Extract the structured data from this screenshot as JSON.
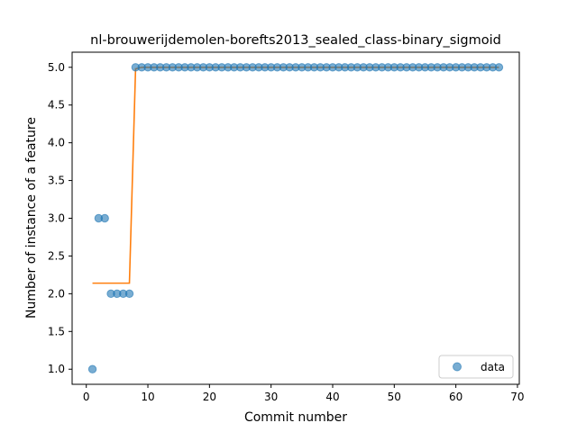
{
  "chart_data": {
    "type": "scatter",
    "title": "nl-brouwerijdemolen-borefts2013_sealed_class-binary_sigmoid",
    "xlabel": "Commit number",
    "ylabel": "Number of instance of a feature",
    "xlim": [
      -2.3,
      70.3
    ],
    "ylim": [
      0.8,
      5.2
    ],
    "xticks": [
      0,
      10,
      20,
      30,
      40,
      50,
      60,
      70
    ],
    "yticks": [
      1.0,
      1.5,
      2.0,
      2.5,
      3.0,
      3.5,
      4.0,
      4.5,
      5.0
    ],
    "xtick_labels": [
      "0",
      "10",
      "20",
      "30",
      "40",
      "50",
      "60",
      "70"
    ],
    "ytick_labels": [
      "1.0",
      "1.5",
      "2.0",
      "2.5",
      "3.0",
      "3.5",
      "4.0",
      "4.5",
      "5.0"
    ],
    "grid": false,
    "legend_position": "bottom-right",
    "series": [
      {
        "name": "data",
        "kind": "scatter",
        "color": "#1f77b4",
        "x": [
          1,
          2,
          3,
          4,
          5,
          6,
          7,
          8,
          9,
          10,
          11,
          12,
          13,
          14,
          15,
          16,
          17,
          18,
          19,
          20,
          21,
          22,
          23,
          24,
          25,
          26,
          27,
          28,
          29,
          30,
          31,
          32,
          33,
          34,
          35,
          36,
          37,
          38,
          39,
          40,
          41,
          42,
          43,
          44,
          45,
          46,
          47,
          48,
          49,
          50,
          51,
          52,
          53,
          54,
          55,
          56,
          57,
          58,
          59,
          60,
          61,
          62,
          63,
          64,
          65,
          66,
          67
        ],
        "y": [
          1,
          3,
          3,
          2,
          2,
          2,
          2,
          5,
          5,
          5,
          5,
          5,
          5,
          5,
          5,
          5,
          5,
          5,
          5,
          5,
          5,
          5,
          5,
          5,
          5,
          5,
          5,
          5,
          5,
          5,
          5,
          5,
          5,
          5,
          5,
          5,
          5,
          5,
          5,
          5,
          5,
          5,
          5,
          5,
          5,
          5,
          5,
          5,
          5,
          5,
          5,
          5,
          5,
          5,
          5,
          5,
          5,
          5,
          5,
          5,
          5,
          5,
          5,
          5,
          5,
          5,
          5
        ]
      },
      {
        "kind": "line",
        "color": "#ff7f0e",
        "x": [
          1,
          2,
          3,
          4,
          5,
          6,
          7,
          8,
          9,
          10,
          20,
          30,
          40,
          50,
          60,
          67
        ],
        "y": [
          2.14,
          2.14,
          2.14,
          2.14,
          2.14,
          2.14,
          2.14,
          4.98,
          5.0,
          5.0,
          5.0,
          5.0,
          5.0,
          5.0,
          5.0,
          5.0
        ]
      }
    ]
  }
}
